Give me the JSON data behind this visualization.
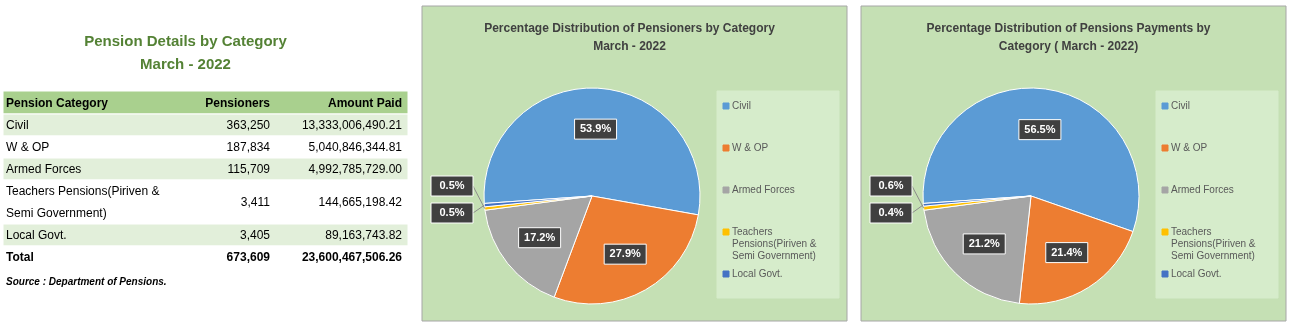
{
  "chart_data": [
    {
      "type": "other",
      "title": "Pension Details by  Category",
      "subtitle": "March - 2022",
      "annotations": [
        "Pension Category",
        "Pensioners",
        "Amount Paid",
        "Civil",
        "363,250",
        "13,333,006,490.21",
        "W & OP",
        "187,834",
        "5,040,846,344.81",
        "Armed Forces",
        "115,709",
        "4,992,785,729.00",
        "Teachers Pensions(Piriven & Semi Government)",
        "3,411",
        "144,665,198.42",
        "Local Govt.",
        "3,405",
        "89,163,743.82",
        "Total",
        "673,609",
        "23,600,467,506.26",
        "Source : Department of Pensions."
      ]
    },
    {
      "type": "pie",
      "title": "Percentage Distribution of Pensioners by Category March - 2022",
      "categories": [
        "Civil",
        "W & OP",
        "Armed Forces",
        "Teachers Pensions(Piriven & Semi Government)",
        "Local Govt."
      ],
      "values": [
        53.9,
        27.9,
        17.2,
        0.5,
        0.5
      ],
      "colors": [
        "#5b9bd5",
        "#ed7d31",
        "#a5a5a5",
        "#ffc000",
        "#4472c4"
      ],
      "value_labels": [
        "53.9%",
        "27.9%",
        "17.2%",
        "0.5%",
        "0.5%"
      ],
      "legend": "right"
    },
    {
      "type": "pie",
      "title": "Percentage Distribution of Pensions Payments by Category    ( March  - 2022)",
      "categories": [
        "Civil",
        "W & OP",
        "Armed Forces",
        "Teachers Pensions(Piriven & Semi Government)",
        "Local Govt."
      ],
      "values": [
        56.5,
        21.4,
        21.2,
        0.6,
        0.4
      ],
      "colors": [
        "#5b9bd5",
        "#ed7d31",
        "#a5a5a5",
        "#ffc000",
        "#4472c4"
      ],
      "value_labels": [
        "56.5%",
        "21.4%",
        "21.2%",
        "0.6%",
        "0.4%"
      ],
      "legend": "right"
    }
  ]
}
